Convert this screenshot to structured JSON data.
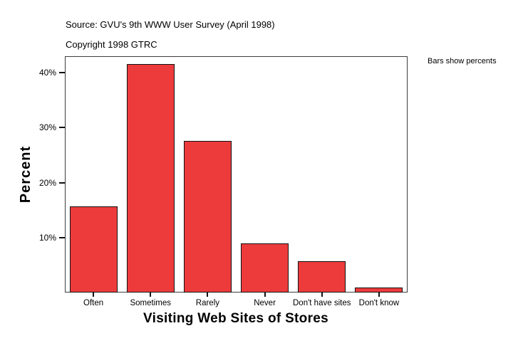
{
  "header": {
    "source_line": "Source: GVU's 9th WWW User Survey (April 1998)",
    "copyright_line": "Copyright 1998 GTRC"
  },
  "annotation": {
    "note": "Bars show percents"
  },
  "chart_data": {
    "type": "bar",
    "title": "",
    "xlabel": "Visiting Web Sites of Stores",
    "ylabel": "Percent",
    "categories": [
      "Often",
      "Sometimes",
      "Rarely",
      "Never",
      "Don't have sites",
      "Don't know"
    ],
    "values": [
      15.7,
      41.6,
      27.6,
      8.9,
      5.7,
      0.9
    ],
    "ylim": [
      0,
      43
    ],
    "yticks": [
      10,
      20,
      30,
      40
    ],
    "ytick_labels": [
      "10%",
      "20%",
      "30%",
      "40%"
    ],
    "bar_color": "#ED3B3C",
    "bar_border_color": "#111111",
    "frame_color": "#3d3d3d",
    "grid": false,
    "legend": "none"
  }
}
